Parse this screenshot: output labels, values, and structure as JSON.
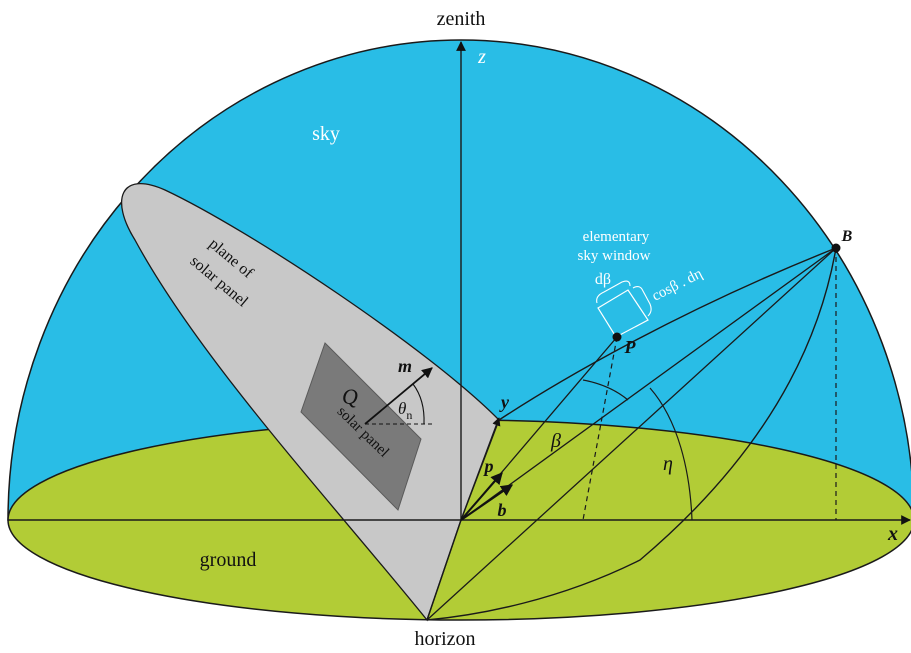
{
  "labels": {
    "zenith": "zenith",
    "horizon": "horizon",
    "sky": "sky",
    "ground": "ground",
    "plane_of": "plane of",
    "solar_panel_plane": "solar panel",
    "solar_panel": "solar panel",
    "q": "Q",
    "m": "m",
    "theta": "θ",
    "theta_sub": "n",
    "z": "z",
    "x": "x",
    "y": "y",
    "p_vec": "p",
    "b_vec": "b",
    "p_point": "P",
    "b_point": "B",
    "beta": "β",
    "eta": "η",
    "elementary": "elementary",
    "sky_window": "sky window",
    "d_beta": "dβ",
    "cos_beta_d_eta": "cosβ . dη"
  },
  "colors": {
    "sky": "#29bde6",
    "ground": "#b2cc36",
    "panel_plane": "#c8c8c8",
    "solar_panel": "#7a7a7a",
    "line": "#1a1a1a"
  }
}
